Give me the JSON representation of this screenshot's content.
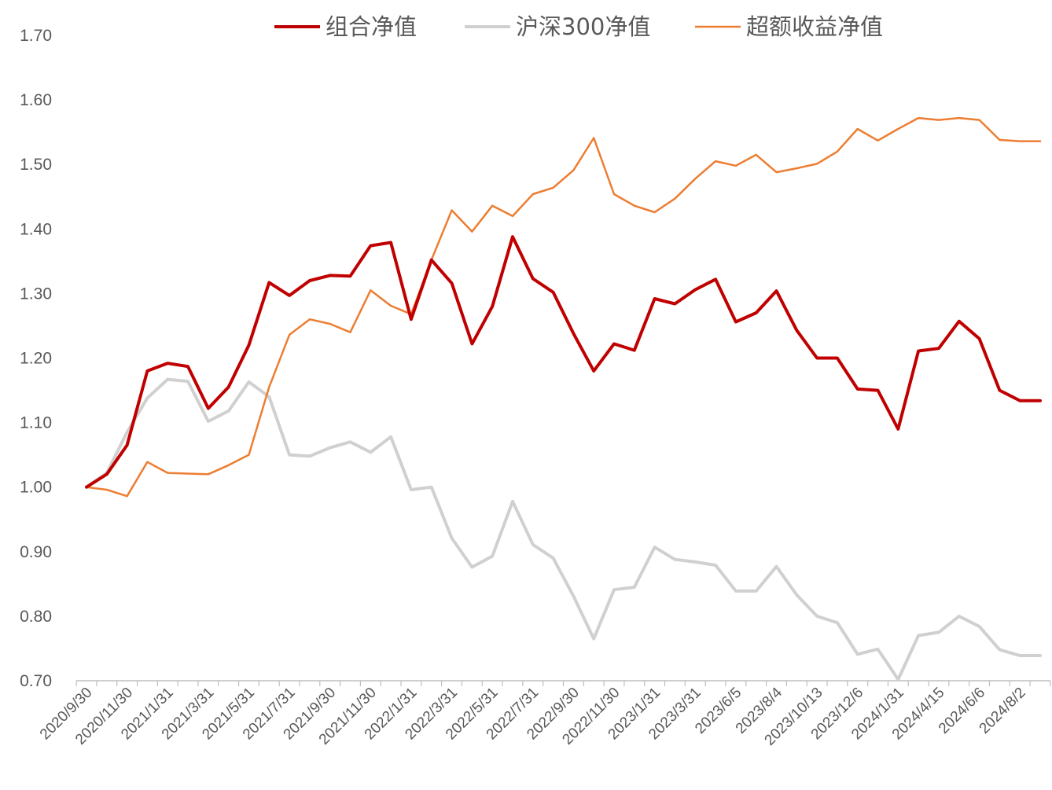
{
  "chart_data": {
    "type": "line",
    "title": "",
    "xlabel": "",
    "ylabel": "",
    "ylim": [
      0.7,
      1.7
    ],
    "y_ticks": [
      "0.70",
      "0.80",
      "0.90",
      "1.00",
      "1.10",
      "1.20",
      "1.30",
      "1.40",
      "1.50",
      "1.60",
      "1.70"
    ],
    "x_tick_labels": [
      "2020/9/30",
      "2020/11/30",
      "2021/1/31",
      "2021/3/31",
      "2021/5/31",
      "2021/7/31",
      "2021/9/30",
      "2021/11/30",
      "2022/1/31",
      "2022/3/31",
      "2022/5/31",
      "2022/7/31",
      "2022/9/30",
      "2022/11/30",
      "2023/1/31",
      "2023/3/31",
      "2023/6/5",
      "2023/8/4",
      "2023/10/13",
      "2023/12/6",
      "2024/1/31",
      "2024/4/15",
      "2024/6/6",
      "2024/8/2"
    ],
    "x_tick_every": 2,
    "grid": false,
    "legend_position": "top",
    "series": [
      {
        "name": "组合净值",
        "color": "#C00000",
        "width": 4,
        "values": [
          1.0,
          1.02,
          1.065,
          1.18,
          1.192,
          1.187,
          1.122,
          1.155,
          1.22,
          1.317,
          1.297,
          1.32,
          1.328,
          1.327,
          1.374,
          1.379,
          1.26,
          1.352,
          1.316,
          1.222,
          1.28,
          1.388,
          1.323,
          1.302,
          1.238,
          1.18,
          1.222,
          1.212,
          1.292,
          1.284,
          1.306,
          1.322,
          1.256,
          1.27,
          1.304,
          1.243,
          1.2,
          1.2,
          1.152,
          1.15,
          1.09,
          1.211,
          1.215,
          1.257,
          1.23,
          1.15,
          1.134,
          1.134
        ]
      },
      {
        "name": "沪深300净值",
        "color": "#D0D0D0",
        "width": 4,
        "values": [
          1.0,
          1.022,
          1.085,
          1.138,
          1.167,
          1.164,
          1.102,
          1.118,
          1.163,
          1.14,
          1.05,
          1.048,
          1.061,
          1.07,
          1.054,
          1.078,
          0.996,
          1.0,
          0.921,
          0.876,
          0.893,
          0.978,
          0.911,
          0.89,
          0.831,
          0.765,
          0.841,
          0.845,
          0.907,
          0.888,
          0.884,
          0.879,
          0.839,
          0.839,
          0.877,
          0.833,
          0.8,
          0.79,
          0.741,
          0.749,
          0.702,
          0.77,
          0.775,
          0.8,
          0.784,
          0.748,
          0.739,
          0.739
        ]
      },
      {
        "name": "超额收益净值",
        "color": "#ED7D31",
        "width": 2.5,
        "values": [
          1.0,
          0.996,
          0.986,
          1.039,
          1.022,
          1.021,
          1.02,
          1.034,
          1.05,
          1.155,
          1.236,
          1.26,
          1.253,
          1.24,
          1.305,
          1.281,
          1.268,
          1.352,
          1.429,
          1.396,
          1.436,
          1.42,
          1.454,
          1.464,
          1.491,
          1.541,
          1.454,
          1.436,
          1.426,
          1.447,
          1.478,
          1.505,
          1.498,
          1.515,
          1.488,
          1.494,
          1.501,
          1.52,
          1.555,
          1.537,
          1.555,
          1.572,
          1.569,
          1.572,
          1.569,
          1.538,
          1.536,
          1.536
        ]
      }
    ]
  }
}
